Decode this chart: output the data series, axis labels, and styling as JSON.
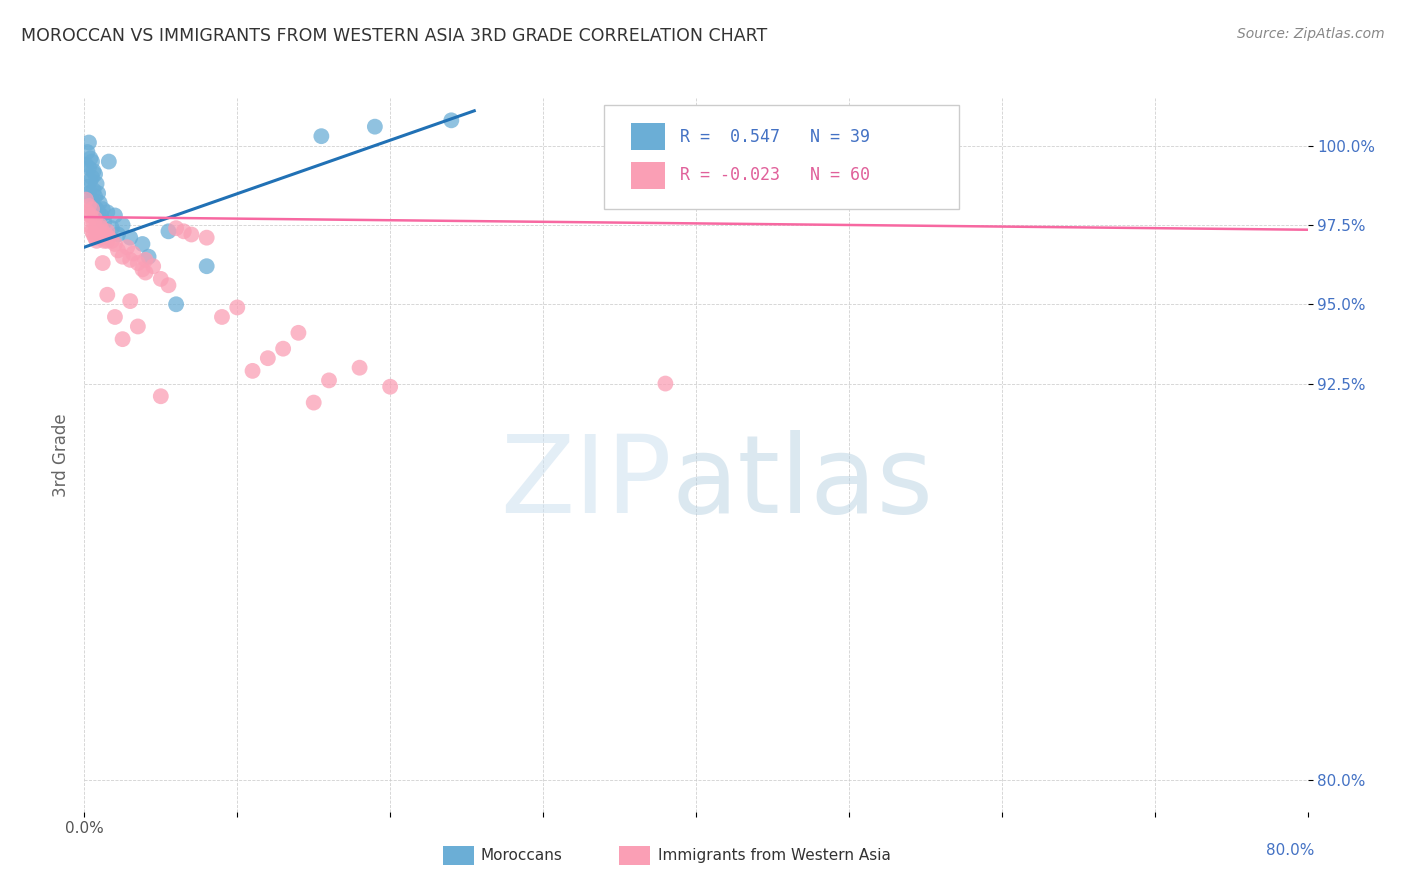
{
  "title": "MOROCCAN VS IMMIGRANTS FROM WESTERN ASIA 3RD GRADE CORRELATION CHART",
  "source": "Source: ZipAtlas.com",
  "ylabel": "3rd Grade",
  "ytick_labels": [
    "80.0%",
    "92.5%",
    "95.0%",
    "97.5%",
    "100.0%"
  ],
  "ytick_pos": [
    80.0,
    92.5,
    95.0,
    97.5,
    100.0
  ],
  "xmin": 0.0,
  "xmax": 0.8,
  "ymin": 79.0,
  "ymax": 101.5,
  "moroccan_R": 0.547,
  "moroccan_N": 39,
  "western_asia_R": -0.023,
  "western_asia_N": 60,
  "moroccan_color": "#6baed6",
  "western_asia_color": "#fa9fb5",
  "trendline_moroccan_color": "#2171b5",
  "trendline_western_asia_color": "#f768a1",
  "moroccan_trend_x": [
    0.0,
    0.255
  ],
  "moroccan_trend_y": [
    96.8,
    101.1
  ],
  "western_trend_x": [
    0.0,
    0.8
  ],
  "western_trend_y": [
    97.75,
    97.35
  ],
  "moroccan_x": [
    0.001,
    0.002,
    0.002,
    0.003,
    0.003,
    0.003,
    0.004,
    0.004,
    0.005,
    0.005,
    0.005,
    0.006,
    0.006,
    0.006,
    0.007,
    0.007,
    0.008,
    0.008,
    0.009,
    0.009,
    0.01,
    0.011,
    0.012,
    0.013,
    0.015,
    0.016,
    0.018,
    0.02,
    0.022,
    0.025,
    0.03,
    0.038,
    0.042,
    0.055,
    0.06,
    0.08,
    0.155,
    0.19,
    0.24
  ],
  "moroccan_y": [
    99.4,
    99.8,
    98.7,
    100.1,
    99.3,
    98.5,
    99.6,
    98.9,
    99.5,
    99.0,
    98.3,
    99.2,
    98.6,
    98.1,
    99.1,
    98.4,
    98.8,
    98.0,
    98.5,
    97.9,
    98.2,
    97.8,
    98.0,
    97.6,
    97.9,
    99.5,
    97.4,
    97.8,
    97.2,
    97.5,
    97.1,
    96.9,
    96.5,
    97.3,
    95.0,
    96.2,
    100.3,
    100.6,
    100.8
  ],
  "western_asia_x": [
    0.001,
    0.002,
    0.003,
    0.003,
    0.004,
    0.005,
    0.005,
    0.006,
    0.006,
    0.007,
    0.007,
    0.008,
    0.008,
    0.009,
    0.01,
    0.01,
    0.011,
    0.012,
    0.013,
    0.014,
    0.015,
    0.015,
    0.016,
    0.018,
    0.02,
    0.022,
    0.025,
    0.028,
    0.03,
    0.032,
    0.035,
    0.038,
    0.04,
    0.045,
    0.05,
    0.055,
    0.06,
    0.065,
    0.07,
    0.08,
    0.09,
    0.1,
    0.11,
    0.12,
    0.13,
    0.14,
    0.15,
    0.16,
    0.18,
    0.2,
    0.012,
    0.015,
    0.02,
    0.025,
    0.03,
    0.035,
    0.04,
    0.05,
    0.38,
    0.5
  ],
  "western_asia_y": [
    98.3,
    97.9,
    98.1,
    97.5,
    97.8,
    98.0,
    97.3,
    97.6,
    97.2,
    97.7,
    97.1,
    97.4,
    97.0,
    97.3,
    97.5,
    97.2,
    97.4,
    97.1,
    97.0,
    97.2,
    97.3,
    97.0,
    97.1,
    97.0,
    96.9,
    96.7,
    96.5,
    96.8,
    96.4,
    96.6,
    96.3,
    96.1,
    96.4,
    96.2,
    95.8,
    95.6,
    97.4,
    97.3,
    97.2,
    97.1,
    94.6,
    94.9,
    92.9,
    93.3,
    93.6,
    94.1,
    91.9,
    92.6,
    93.0,
    92.4,
    96.3,
    95.3,
    94.6,
    93.9,
    95.1,
    94.3,
    96.0,
    92.1,
    92.5,
    100.5
  ]
}
